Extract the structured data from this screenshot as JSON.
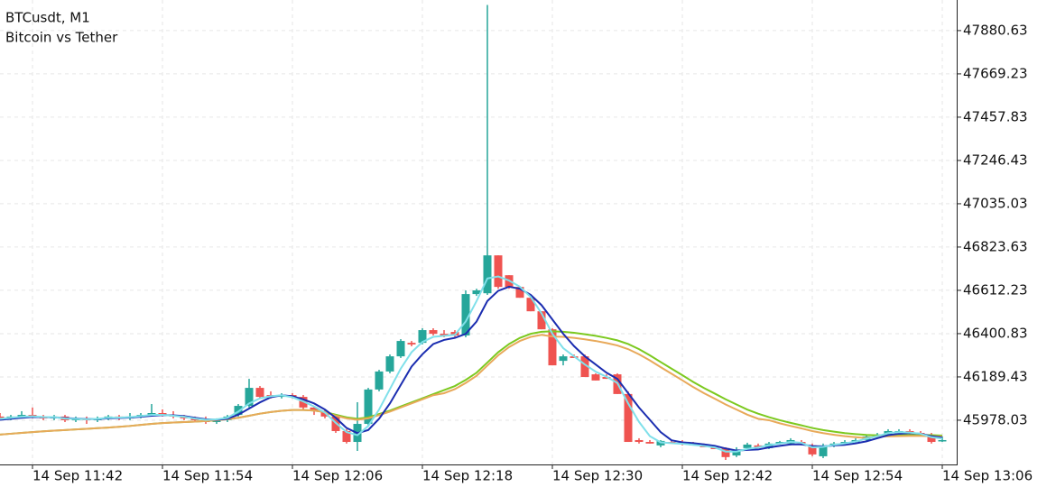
{
  "chart_data": {
    "type": "candlestick",
    "title": "BTCusdt, M1",
    "subtitle": "Bitcoin vs Tether",
    "x": [
      null,
      null,
      null,
      "14 Sep 11:42",
      null,
      null,
      null,
      null,
      null,
      null,
      null,
      null,
      null,
      null,
      null,
      "14 Sep 11:54",
      null,
      null,
      null,
      null,
      null,
      null,
      null,
      null,
      null,
      null,
      null,
      "14 Sep 12:06",
      null,
      null,
      null,
      null,
      null,
      null,
      null,
      null,
      null,
      null,
      null,
      "14 Sep 12:18",
      null,
      null,
      null,
      null,
      null,
      null,
      null,
      null,
      null,
      null,
      null,
      "14 Sep 12:30",
      null,
      null,
      null,
      null,
      null,
      null,
      null,
      null,
      null,
      null,
      null,
      "14 Sep 12:42",
      null,
      null,
      null,
      null,
      null,
      null,
      null,
      null,
      null,
      null,
      null,
      "14 Sep 12:54",
      null,
      null,
      null,
      null,
      null,
      null,
      null,
      null,
      null,
      null,
      null,
      "14 Sep 13:06"
    ],
    "open": [
      45996,
      45987,
      45996,
      46004,
      45996,
      45987,
      45996,
      45978,
      45987,
      45978,
      45987,
      45996,
      45987,
      45996,
      46004,
      46013,
      46004,
      45996,
      45987,
      45978,
      45969,
      45978,
      46004,
      46048,
      46136,
      46101,
      46092,
      46101,
      46092,
      46040,
      46022,
      45996,
      45925,
      45872,
      45960,
      46128,
      46216,
      46290,
      46356,
      46356,
      46418,
      46400,
      46409,
      46392,
      46594,
      46598,
      46783,
      46686,
      46629,
      46576,
      46510,
      46422,
      46268,
      46290,
      46290,
      46202,
      46189,
      46202,
      46106,
      45881,
      45872,
      45855,
      45872,
      45872,
      45864,
      45855,
      45846,
      45842,
      45806,
      45842,
      45855,
      45842,
      45868,
      45864,
      45872,
      45855,
      45802,
      45855,
      45864,
      45872,
      45881,
      45899,
      45908,
      45925,
      45925,
      45916,
      45908,
      45881
    ],
    "high": [
      46013,
      46004,
      46022,
      46040,
      46004,
      46004,
      46004,
      45996,
      45996,
      45996,
      46004,
      46004,
      46013,
      46013,
      46057,
      46031,
      46022,
      46004,
      45996,
      45996,
      45987,
      46004,
      46057,
      46180,
      46145,
      46119,
      46110,
      46110,
      46101,
      46048,
      46031,
      46004,
      45934,
      46066,
      46136,
      46224,
      46299,
      46374,
      46365,
      46427,
      46427,
      46418,
      46418,
      46612,
      46620,
      48006,
      46783,
      46686,
      46629,
      46585,
      46510,
      46427,
      46299,
      46299,
      46299,
      46207,
      46202,
      46207,
      46119,
      45890,
      45881,
      45881,
      45881,
      45881,
      45872,
      45864,
      45855,
      45846,
      45846,
      45868,
      45864,
      45872,
      45877,
      45890,
      45881,
      45864,
      45864,
      45872,
      45881,
      45890,
      45908,
      45916,
      45934,
      45934,
      45934,
      45925,
      45916,
      45899
    ],
    "low": [
      45978,
      45978,
      45987,
      45987,
      45978,
      45978,
      45969,
      45969,
      45960,
      45969,
      45978,
      45978,
      45978,
      45987,
      45996,
      45996,
      45987,
      45978,
      45969,
      45960,
      45960,
      45969,
      45996,
      46040,
      46084,
      46084,
      46084,
      46084,
      46031,
      46004,
      45987,
      45916,
      45864,
      45828,
      45952,
      46119,
      46207,
      46282,
      46339,
      46348,
      46392,
      46383,
      46383,
      46383,
      46585,
      46590,
      46620,
      46620,
      46576,
      46510,
      46422,
      46246,
      46246,
      46282,
      46189,
      46172,
      46180,
      46106,
      45872,
      45864,
      45864,
      45846,
      45864,
      45855,
      45855,
      45846,
      45837,
      45784,
      45798,
      45833,
      45846,
      45837,
      45859,
      45855,
      45855,
      45802,
      45793,
      45846,
      45855,
      45864,
      45872,
      45890,
      45899,
      45916,
      45908,
      45899,
      45864,
      45872
    ],
    "close": [
      45987,
      45996,
      46004,
      45996,
      45987,
      45996,
      45978,
      45987,
      45978,
      45987,
      45996,
      45987,
      45996,
      46004,
      46013,
      46004,
      45996,
      45987,
      45978,
      45969,
      45978,
      45996,
      46048,
      46136,
      46092,
      46092,
      46101,
      46092,
      46040,
      46022,
      45996,
      45925,
      45872,
      45960,
      46128,
      46216,
      46290,
      46365,
      46348,
      46418,
      46400,
      46392,
      46392,
      46594,
      46612,
      46783,
      46629,
      46629,
      46576,
      46510,
      46422,
      46246,
      46290,
      46282,
      46189,
      46172,
      46180,
      46106,
      45872,
      45872,
      45864,
      45877,
      45864,
      45864,
      45855,
      45846,
      45837,
      45798,
      45833,
      45859,
      45846,
      45864,
      45872,
      45881,
      45864,
      45811,
      45855,
      45864,
      45872,
      45881,
      45899,
      45908,
      45925,
      45925,
      45916,
      45908,
      45872,
      45881
    ],
    "up_color": "#26a69a",
    "down_color": "#ef5350",
    "lines": [
      {
        "color": "#7cc91f",
        "values": [
          45908,
          45912,
          45916,
          45920,
          45924,
          45927,
          45930,
          45933,
          45936,
          45939,
          45942,
          45946,
          45950,
          45955,
          45960,
          45964,
          45967,
          45969,
          45971,
          45974,
          45978,
          45983,
          45990,
          46000,
          46010,
          46018,
          46024,
          46028,
          46028,
          46025,
          46018,
          46005,
          45992,
          45985,
          45992,
          46008,
          46025,
          46045,
          46065,
          46085,
          46105,
          46125,
          46145,
          46175,
          46210,
          46260,
          46310,
          46350,
          46380,
          46400,
          46410,
          46412,
          46410,
          46405,
          46398,
          46390,
          46380,
          46368,
          46350,
          46325,
          46295,
          46262,
          46230,
          46198,
          46165,
          46135,
          46108,
          46080,
          46055,
          46030,
          46010,
          45993,
          45978,
          45965,
          45953,
          45940,
          45930,
          45922,
          45915,
          45910,
          45906,
          45904,
          45904,
          45905,
          45906,
          45906,
          45905,
          45903
        ]
      },
      {
        "color": "#e8a95a",
        "values": [
          45908,
          45912,
          45916,
          45920,
          45924,
          45927,
          45930,
          45933,
          45936,
          45939,
          45942,
          45946,
          45950,
          45955,
          45960,
          45964,
          45967,
          45969,
          45971,
          45974,
          45978,
          45983,
          45990,
          46000,
          46010,
          46018,
          46024,
          46028,
          46028,
          46025,
          46018,
          46000,
          45987,
          45980,
          45987,
          46003,
          46020,
          46040,
          46060,
          46080,
          46100,
          46110,
          46130,
          46160,
          46195,
          46245,
          46295,
          46335,
          46365,
          46385,
          46395,
          46387,
          46385,
          46380,
          46373,
          46365,
          46355,
          46343,
          46325,
          46300,
          46270,
          46237,
          46205,
          46173,
          46140,
          46110,
          46083,
          46055,
          46030,
          46005,
          45985,
          45978,
          45963,
          45950,
          45938,
          45925,
          45915,
          45907,
          45900,
          45895,
          45891,
          45899,
          45899,
          45900,
          45901,
          45901,
          45900,
          45898
        ]
      },
      {
        "color": "#1b2db0",
        "values": [
          45980,
          45985,
          45990,
          45994,
          45993,
          45992,
          45988,
          45986,
          45984,
          45984,
          45987,
          45989,
          45991,
          45995,
          46000,
          46003,
          46002,
          45998,
          45990,
          45983,
          45980,
          45985,
          46005,
          46035,
          46065,
          46090,
          46100,
          46095,
          46080,
          46060,
          46030,
          45990,
          45940,
          45915,
          45930,
          45985,
          46060,
          46150,
          46240,
          46300,
          46350,
          46370,
          46380,
          46400,
          46460,
          46560,
          46610,
          46630,
          46620,
          46590,
          46540,
          46470,
          46400,
          46340,
          46290,
          46250,
          46210,
          46180,
          46110,
          46040,
          45980,
          45920,
          45880,
          45870,
          45866,
          45860,
          45853,
          45840,
          45830,
          45833,
          45835,
          45845,
          45853,
          45860,
          45860,
          45852,
          45850,
          45855,
          45858,
          45865,
          45875,
          45890,
          45905,
          45912,
          45915,
          45912,
          45900,
          45893
        ]
      },
      {
        "color": "#80e0ea",
        "values": [
          45985,
          45990,
          45995,
          45997,
          45994,
          45993,
          45986,
          45985,
          45983,
          45985,
          45990,
          45991,
          45993,
          45998,
          46004,
          46004,
          46000,
          45995,
          45986,
          45980,
          45982,
          45990,
          46020,
          46060,
          46085,
          46095,
          46100,
          46090,
          46070,
          46045,
          46015,
          45965,
          45920,
          45905,
          45950,
          46030,
          46130,
          46230,
          46310,
          46360,
          46385,
          46390,
          46395,
          46460,
          46560,
          46670,
          46680,
          46660,
          46630,
          46580,
          46500,
          46400,
          46330,
          46290,
          46250,
          46215,
          46190,
          46160,
          46060,
          45970,
          45900,
          45870,
          45866,
          45863,
          45858,
          45852,
          45845,
          45825,
          45825,
          45838,
          45845,
          45856,
          45864,
          45872,
          45868,
          45845,
          45848,
          45858,
          45865,
          45874,
          45888,
          45900,
          45915,
          45920,
          45918,
          45912,
          45895,
          45888
        ]
      }
    ],
    "ylim": [
      45762,
      48030
    ],
    "yticks": [
      45978.03,
      46189.43,
      46400.83,
      46612.23,
      46823.63,
      47035.03,
      47246.43,
      47457.83,
      47669.23,
      47880.63
    ],
    "grid": true
  }
}
